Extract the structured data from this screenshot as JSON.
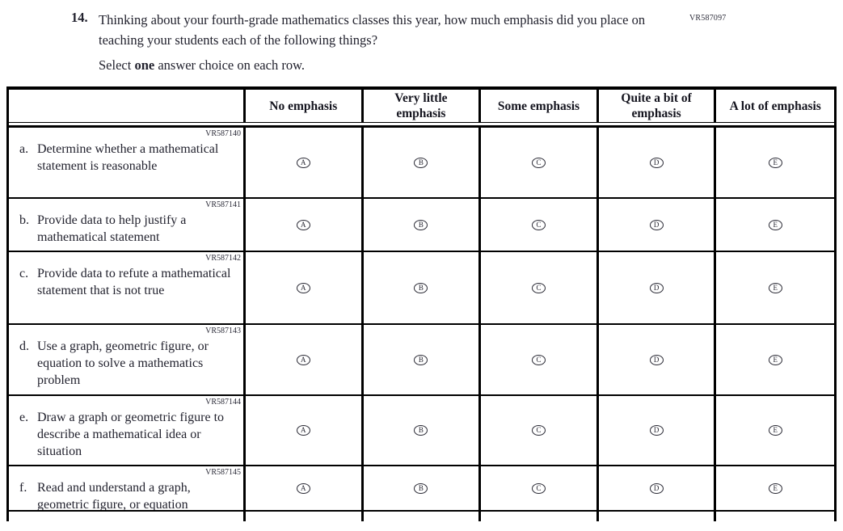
{
  "page": {
    "top_code": "VR587097"
  },
  "question": {
    "number": "14.",
    "text": "Thinking about your fourth-grade mathematics classes this year, how much emphasis did you place on teaching your students each of the following things?",
    "instruction_prefix": "Select ",
    "instruction_bold": "one",
    "instruction_suffix": " answer choice on each row."
  },
  "table": {
    "columns": [
      "No emphasis",
      "Very little emphasis",
      "Some emphasis",
      "Quite a bit of emphasis",
      "A lot of emphasis"
    ],
    "options": [
      "A",
      "B",
      "C",
      "D",
      "E"
    ],
    "rows": [
      {
        "code": "VR587140",
        "prefix": "a.",
        "label": "Determine whether a mathematical statement is reasonable"
      },
      {
        "code": "VR587141",
        "prefix": "b.",
        "label": "Provide data to help justify a mathematical statement"
      },
      {
        "code": "VR587142",
        "prefix": "c.",
        "label": "Provide data to refute a mathematical statement that is not true"
      },
      {
        "code": "VR587143",
        "prefix": "d.",
        "label": "Use a graph, geometric figure, or equation to solve a mathematics problem"
      },
      {
        "code": "VR587144",
        "prefix": "e.",
        "label": "Draw a graph or geometric figure to describe a mathematical idea or situation"
      },
      {
        "code": "VR587145",
        "prefix": "f.",
        "label": "Read and understand a graph, geometric figure, or equation"
      }
    ]
  }
}
